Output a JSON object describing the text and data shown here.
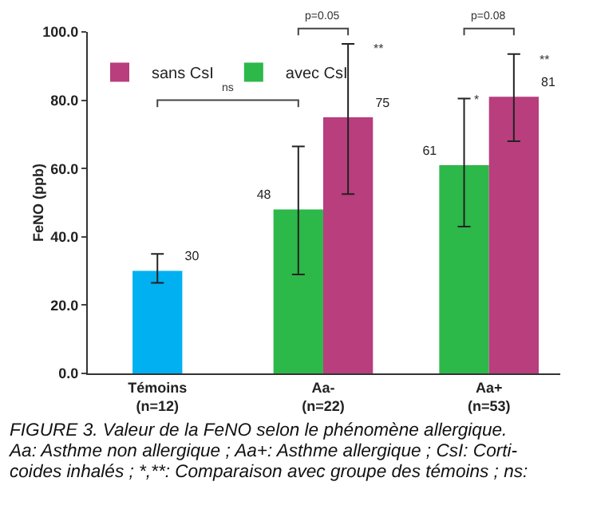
{
  "chart_data": {
    "type": "bar",
    "ylabel": "FeNO (ppb)",
    "categories": [
      "Témoins\n(n=12)",
      "Aa-\n(n=22)",
      "Aa+\n(n=53)"
    ],
    "series": [
      {
        "color": "#00b0f0",
        "values": [
          30,
          null,
          null
        ],
        "errors": [
          [
            26.5,
            35
          ],
          null,
          null
        ]
      },
      {
        "name": "avec CsI",
        "color": "#2db84a",
        "values": [
          null,
          48,
          61
        ],
        "errors": [
          null,
          [
            29,
            66.5
          ],
          [
            43,
            80.5
          ]
        ]
      },
      {
        "name": "sans CsI",
        "color": "#b83e7e",
        "values": [
          null,
          75,
          81
        ],
        "errors": [
          null,
          [
            52.5,
            96.5
          ],
          [
            68,
            93.5
          ]
        ]
      }
    ],
    "ylim": [
      0,
      100
    ],
    "yticks": [
      {
        "value": 0,
        "label": "0.0"
      },
      {
        "value": 20,
        "label": "20.0"
      },
      {
        "value": 40,
        "label": "40.0"
      },
      {
        "value": 60,
        "label": "60.0"
      },
      {
        "value": 80,
        "label": "80.0"
      },
      {
        "value": 100,
        "label": "100.0"
      }
    ],
    "data_labels": true,
    "grid": false,
    "legend": "top left",
    "annotations": [
      "ns",
      "p=0.05",
      "p=0.08",
      "**",
      "*",
      "**",
      "FIGURE 3. Valeur de la FeNO selon le phénomène allergique.",
      "Aa: Asthme non allergique ; Aa+: Asthme allergique ; CsI: Corti-",
      "coides inhalés ; *,**: Comparaison avec groupe des témoins ; ns:"
    ]
  }
}
